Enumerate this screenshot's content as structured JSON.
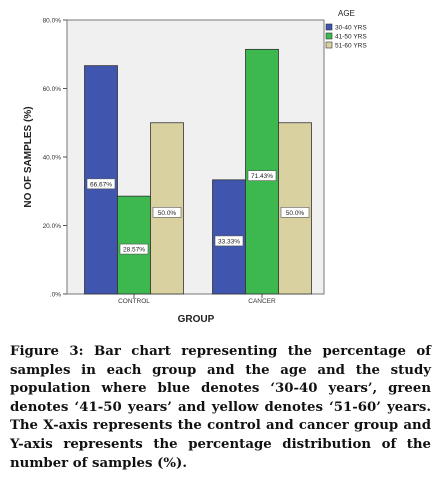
{
  "chart_data": {
    "type": "bar",
    "xlabel": "GROUP",
    "ylabel": "NO OF SAMPLES (%)",
    "ylim": [
      0,
      80
    ],
    "yticks": [
      0,
      20,
      40,
      60,
      80
    ],
    "ytick_labels": [
      ".0%",
      "20.0%",
      "40.0%",
      "60.0%",
      "80.0%"
    ],
    "categories": [
      "CONTROL",
      "CANCER"
    ],
    "legend_title": "AGE",
    "legend_position": "top-right",
    "grid": false,
    "series": [
      {
        "name": "30-40 YRS",
        "color": "#3f55ae",
        "values": [
          66.67,
          33.33
        ],
        "labels": [
          "66.67%",
          "33.33%"
        ]
      },
      {
        "name": "41-50 YRS",
        "color": "#3cb84f",
        "values": [
          28.57,
          71.43
        ],
        "labels": [
          "28.57%",
          "71.43%"
        ]
      },
      {
        "name": "51-60 YRS",
        "color": "#d9d2a0",
        "values": [
          50.0,
          50.0
        ],
        "labels": [
          "50.0%",
          "50.0%"
        ]
      }
    ]
  },
  "caption": {
    "label": "Figure 3:",
    "text": " Bar chart representing the percentage of samples in each group and the age and the study population where blue denotes ‘30-40 years’, green denotes ‘41-50 years’ and yellow denotes ‘51-60’ years. The X-axis represents the control and cancer group and Y-axis represents the percentage distribution of the number of samples (%)."
  }
}
